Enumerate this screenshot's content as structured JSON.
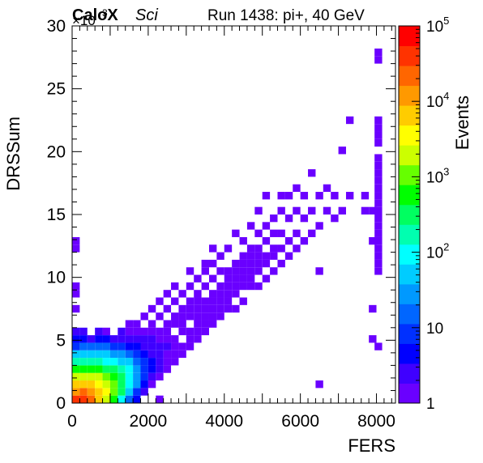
{
  "chart_data": {
    "type": "heatmap",
    "title_left": "CaloX",
    "title_left_sub": "Sci",
    "title_right": "Run 1438: pi+, 40 GeV",
    "xlabel": "FERS",
    "ylabel": "DRSSum",
    "y_multiplier_label": "×10",
    "y_multiplier_exponent": "3",
    "zlabel": "Events",
    "xlim": [
      0,
      8500
    ],
    "ylim": [
      0,
      30
    ],
    "zlim": [
      1,
      100000
    ],
    "z_scale": "log",
    "x_ticks": [
      0,
      2000,
      4000,
      6000,
      8000
    ],
    "x_tick_labels": [
      "0",
      "2000",
      "4000",
      "6000",
      "8000"
    ],
    "y_ticks": [
      0,
      5,
      10,
      15,
      20,
      25,
      30
    ],
    "y_tick_labels": [
      "0",
      "5",
      "10",
      "15",
      "20",
      "25",
      "30"
    ],
    "z_tick_labels": [
      {
        "value": 1,
        "base": "1",
        "exp": ""
      },
      {
        "value": 10,
        "base": "10",
        "exp": ""
      },
      {
        "value": 100,
        "base": "10",
        "exp": "2"
      },
      {
        "value": 1000,
        "base": "10",
        "exp": "3"
      },
      {
        "value": 10000,
        "base": "10",
        "exp": "4"
      },
      {
        "value": 100000,
        "base": "10",
        "exp": "5"
      }
    ],
    "grid": false,
    "colormap": [
      "#6a00ff",
      "#3f00ff",
      "#0000ff",
      "#0030ff",
      "#0066ff",
      "#0099ff",
      "#00ccff",
      "#00ffff",
      "#00ffb0",
      "#00ff60",
      "#00ff00",
      "#66ff00",
      "#ccff00",
      "#ffff00",
      "#ffcc00",
      "#ff9900",
      "#ff6600",
      "#ff3300",
      "#ff0000"
    ],
    "note": "Bins give [x, y, counts] in data units (FERS, DRSSum ×10^3, events).",
    "bins": [
      [
        100,
        0.3,
        30000
      ],
      [
        100,
        0.9,
        12000
      ],
      [
        100,
        1.5,
        5000
      ],
      [
        100,
        2.1,
        1500
      ],
      [
        100,
        2.7,
        500
      ],
      [
        100,
        3.3,
        150
      ],
      [
        100,
        3.9,
        40
      ],
      [
        100,
        4.5,
        10
      ],
      [
        100,
        5.1,
        4
      ],
      [
        100,
        5.7,
        2
      ],
      [
        100,
        7.5,
        1
      ],
      [
        100,
        8.7,
        1
      ],
      [
        100,
        9.3,
        1
      ],
      [
        100,
        12.3,
        1
      ],
      [
        100,
        12.9,
        1
      ],
      [
        300,
        0.3,
        40000
      ],
      [
        300,
        0.9,
        20000
      ],
      [
        300,
        1.5,
        8000
      ],
      [
        300,
        2.1,
        2500
      ],
      [
        300,
        2.7,
        700
      ],
      [
        300,
        3.3,
        200
      ],
      [
        300,
        3.9,
        50
      ],
      [
        300,
        4.5,
        15
      ],
      [
        300,
        5.1,
        5
      ],
      [
        300,
        5.7,
        2
      ],
      [
        500,
        0.3,
        20000
      ],
      [
        500,
        0.9,
        15000
      ],
      [
        500,
        1.5,
        6000
      ],
      [
        500,
        2.1,
        2000
      ],
      [
        500,
        2.7,
        700
      ],
      [
        500,
        3.3,
        200
      ],
      [
        500,
        3.9,
        60
      ],
      [
        500,
        4.5,
        15
      ],
      [
        500,
        5.1,
        3
      ],
      [
        700,
        0.3,
        8000
      ],
      [
        700,
        0.9,
        8000
      ],
      [
        700,
        1.5,
        4000
      ],
      [
        700,
        2.1,
        1500
      ],
      [
        700,
        2.7,
        500
      ],
      [
        700,
        3.3,
        150
      ],
      [
        700,
        3.9,
        50
      ],
      [
        700,
        4.5,
        15
      ],
      [
        700,
        5.1,
        5
      ],
      [
        700,
        5.7,
        2
      ],
      [
        900,
        0.3,
        2500
      ],
      [
        900,
        0.9,
        3500
      ],
      [
        900,
        1.5,
        2500
      ],
      [
        900,
        2.1,
        1000
      ],
      [
        900,
        2.7,
        400
      ],
      [
        900,
        3.3,
        120
      ],
      [
        900,
        3.9,
        40
      ],
      [
        900,
        4.5,
        12
      ],
      [
        900,
        5.1,
        4
      ],
      [
        900,
        5.7,
        1
      ],
      [
        1100,
        0.3,
        600
      ],
      [
        1100,
        0.9,
        1200
      ],
      [
        1100,
        1.5,
        1200
      ],
      [
        1100,
        2.1,
        600
      ],
      [
        1100,
        2.7,
        250
      ],
      [
        1100,
        3.3,
        90
      ],
      [
        1100,
        3.9,
        30
      ],
      [
        1100,
        4.5,
        10
      ],
      [
        1100,
        5.1,
        3
      ],
      [
        1300,
        0.3,
        120
      ],
      [
        1300,
        0.9,
        300
      ],
      [
        1300,
        1.5,
        400
      ],
      [
        1300,
        2.1,
        300
      ],
      [
        1300,
        2.7,
        150
      ],
      [
        1300,
        3.3,
        60
      ],
      [
        1300,
        3.9,
        25
      ],
      [
        1300,
        4.5,
        8
      ],
      [
        1300,
        5.1,
        3
      ],
      [
        1300,
        5.7,
        2
      ],
      [
        1500,
        0.3,
        20
      ],
      [
        1500,
        0.9,
        60
      ],
      [
        1500,
        1.5,
        100
      ],
      [
        1500,
        2.1,
        100
      ],
      [
        1500,
        2.7,
        70
      ],
      [
        1500,
        3.3,
        40
      ],
      [
        1500,
        3.9,
        15
      ],
      [
        1500,
        4.5,
        6
      ],
      [
        1500,
        5.1,
        2
      ],
      [
        1500,
        5.7,
        1
      ],
      [
        1500,
        6.3,
        1
      ],
      [
        1700,
        0.3,
        4
      ],
      [
        1700,
        0.9,
        10
      ],
      [
        1700,
        1.5,
        25
      ],
      [
        1700,
        2.1,
        30
      ],
      [
        1700,
        2.7,
        25
      ],
      [
        1700,
        3.3,
        15
      ],
      [
        1700,
        3.9,
        8
      ],
      [
        1700,
        4.5,
        4
      ],
      [
        1700,
        5.1,
        2
      ],
      [
        1700,
        5.7,
        1
      ],
      [
        1700,
        6.3,
        1
      ],
      [
        1900,
        0.9,
        2
      ],
      [
        1900,
        1.5,
        5
      ],
      [
        1900,
        2.1,
        8
      ],
      [
        1900,
        2.7,
        10
      ],
      [
        1900,
        3.3,
        8
      ],
      [
        1900,
        3.9,
        5
      ],
      [
        1900,
        4.5,
        3
      ],
      [
        1900,
        5.1,
        2
      ],
      [
        1900,
        5.7,
        1
      ],
      [
        1900,
        6.9,
        1
      ],
      [
        2100,
        1.5,
        1
      ],
      [
        2100,
        2.1,
        2
      ],
      [
        2100,
        2.7,
        4
      ],
      [
        2100,
        3.3,
        4
      ],
      [
        2100,
        3.9,
        3
      ],
      [
        2100,
        4.5,
        2
      ],
      [
        2100,
        5.1,
        2
      ],
      [
        2100,
        5.7,
        1
      ],
      [
        2100,
        6.3,
        1
      ],
      [
        2100,
        7.5,
        1
      ],
      [
        2300,
        0.3,
        1
      ],
      [
        2300,
        2.1,
        1
      ],
      [
        2300,
        2.7,
        2
      ],
      [
        2300,
        3.3,
        2
      ],
      [
        2300,
        3.9,
        2
      ],
      [
        2300,
        4.5,
        2
      ],
      [
        2300,
        5.1,
        1
      ],
      [
        2300,
        5.7,
        1
      ],
      [
        2300,
        6.9,
        1
      ],
      [
        2300,
        8.1,
        1
      ],
      [
        2500,
        2.7,
        1
      ],
      [
        2500,
        3.3,
        1
      ],
      [
        2500,
        3.9,
        1
      ],
      [
        2500,
        4.5,
        2
      ],
      [
        2500,
        5.1,
        1
      ],
      [
        2500,
        5.7,
        1
      ],
      [
        2500,
        6.3,
        1
      ],
      [
        2500,
        7.5,
        1
      ],
      [
        2500,
        8.7,
        1
      ],
      [
        2700,
        3.3,
        1
      ],
      [
        2700,
        3.9,
        1
      ],
      [
        2700,
        4.5,
        1
      ],
      [
        2700,
        5.1,
        1
      ],
      [
        2700,
        6.3,
        1
      ],
      [
        2700,
        6.9,
        1
      ],
      [
        2700,
        8.1,
        1
      ],
      [
        2700,
        9.3,
        1
      ],
      [
        2900,
        3.9,
        1
      ],
      [
        2900,
        4.5,
        1
      ],
      [
        2900,
        5.7,
        1
      ],
      [
        2900,
        6.3,
        1
      ],
      [
        2900,
        6.9,
        1
      ],
      [
        2900,
        7.5,
        1
      ],
      [
        2900,
        8.7,
        1
      ],
      [
        3100,
        4.5,
        1
      ],
      [
        3100,
        5.1,
        1
      ],
      [
        3100,
        5.7,
        1
      ],
      [
        3100,
        6.9,
        1
      ],
      [
        3100,
        7.5,
        1
      ],
      [
        3100,
        8.1,
        1
      ],
      [
        3100,
        9.3,
        1
      ],
      [
        3100,
        10.5,
        1
      ],
      [
        3300,
        5.1,
        1
      ],
      [
        3300,
        5.7,
        1
      ],
      [
        3300,
        6.3,
        1
      ],
      [
        3300,
        6.9,
        1
      ],
      [
        3300,
        7.5,
        1
      ],
      [
        3300,
        8.1,
        1
      ],
      [
        3300,
        8.7,
        1
      ],
      [
        3300,
        9.9,
        1
      ],
      [
        3500,
        5.7,
        1
      ],
      [
        3500,
        6.3,
        1
      ],
      [
        3500,
        6.9,
        1
      ],
      [
        3500,
        7.5,
        1
      ],
      [
        3500,
        8.1,
        1
      ],
      [
        3500,
        9.3,
        1
      ],
      [
        3500,
        10.5,
        1
      ],
      [
        3500,
        11.1,
        1
      ],
      [
        3700,
        6.3,
        1
      ],
      [
        3700,
        6.9,
        1
      ],
      [
        3700,
        7.5,
        1
      ],
      [
        3700,
        8.1,
        1
      ],
      [
        3700,
        8.7,
        1
      ],
      [
        3700,
        9.9,
        1
      ],
      [
        3700,
        11.1,
        1
      ],
      [
        3700,
        12.3,
        1
      ],
      [
        3900,
        6.9,
        1
      ],
      [
        3900,
        7.5,
        1
      ],
      [
        3900,
        8.1,
        1
      ],
      [
        3900,
        8.7,
        1
      ],
      [
        3900,
        9.3,
        1
      ],
      [
        3900,
        10.5,
        1
      ],
      [
        3900,
        11.7,
        1
      ],
      [
        4100,
        7.5,
        1
      ],
      [
        4100,
        8.1,
        1
      ],
      [
        4100,
        8.7,
        1
      ],
      [
        4100,
        9.3,
        1
      ],
      [
        4100,
        9.9,
        1
      ],
      [
        4100,
        10.5,
        1
      ],
      [
        4100,
        12.3,
        1
      ],
      [
        4300,
        7.5,
        1
      ],
      [
        4300,
        8.7,
        1
      ],
      [
        4300,
        9.3,
        1
      ],
      [
        4300,
        9.9,
        1
      ],
      [
        4300,
        10.5,
        1
      ],
      [
        4300,
        11.1,
        1
      ],
      [
        4300,
        13.5,
        1
      ],
      [
        4500,
        8.1,
        1
      ],
      [
        4500,
        9.3,
        1
      ],
      [
        4500,
        9.9,
        1
      ],
      [
        4500,
        10.5,
        1
      ],
      [
        4500,
        11.1,
        1
      ],
      [
        4500,
        11.7,
        1
      ],
      [
        4500,
        12.9,
        1
      ],
      [
        4700,
        9.3,
        1
      ],
      [
        4700,
        9.9,
        1
      ],
      [
        4700,
        10.5,
        1
      ],
      [
        4700,
        11.1,
        1
      ],
      [
        4700,
        11.7,
        1
      ],
      [
        4700,
        12.3,
        1
      ],
      [
        4700,
        14.1,
        1
      ],
      [
        4900,
        9.3,
        1
      ],
      [
        4900,
        10.5,
        1
      ],
      [
        4900,
        11.1,
        1
      ],
      [
        4900,
        11.7,
        1
      ],
      [
        4900,
        12.3,
        1
      ],
      [
        4900,
        13.5,
        1
      ],
      [
        4900,
        15.3,
        1
      ],
      [
        5100,
        9.9,
        1
      ],
      [
        5100,
        11.1,
        1
      ],
      [
        5100,
        11.7,
        1
      ],
      [
        5100,
        12.9,
        1
      ],
      [
        5100,
        14.1,
        1
      ],
      [
        5100,
        16.5,
        1
      ],
      [
        5300,
        10.5,
        1
      ],
      [
        5300,
        11.7,
        1
      ],
      [
        5300,
        12.3,
        1
      ],
      [
        5300,
        13.5,
        1
      ],
      [
        5300,
        14.7,
        1
      ],
      [
        5500,
        11.1,
        1
      ],
      [
        5500,
        12.3,
        1
      ],
      [
        5500,
        13.5,
        1
      ],
      [
        5500,
        15.3,
        1
      ],
      [
        5500,
        16.5,
        1
      ],
      [
        5700,
        11.7,
        1
      ],
      [
        5700,
        12.9,
        1
      ],
      [
        5700,
        14.7,
        1
      ],
      [
        5700,
        16.5,
        1
      ],
      [
        5900,
        12.3,
        1
      ],
      [
        5900,
        13.5,
        1
      ],
      [
        5900,
        15.3,
        1
      ],
      [
        5900,
        17.1,
        1
      ],
      [
        6100,
        12.9,
        1
      ],
      [
        6100,
        14.7,
        1
      ],
      [
        6100,
        16.5,
        1
      ],
      [
        6300,
        13.5,
        1
      ],
      [
        6300,
        15.3,
        1
      ],
      [
        6300,
        18.3,
        1
      ],
      [
        6500,
        10.5,
        1
      ],
      [
        6500,
        14.1,
        1
      ],
      [
        6500,
        16.5,
        1
      ],
      [
        6500,
        1.5,
        1
      ],
      [
        6700,
        15.3,
        1
      ],
      [
        6700,
        17.1,
        1
      ],
      [
        6900,
        14.7,
        1
      ],
      [
        6900,
        16.5,
        1
      ],
      [
        7100,
        15.3,
        1
      ],
      [
        7100,
        20.1,
        1
      ],
      [
        7300,
        16.5,
        1
      ],
      [
        7300,
        22.5,
        1
      ],
      [
        7700,
        15.3,
        1
      ],
      [
        7700,
        16.5,
        1
      ],
      [
        7900,
        5.1,
        1
      ],
      [
        7900,
        7.5,
        1
      ],
      [
        7900,
        12.9,
        1
      ],
      [
        7900,
        15.3,
        1
      ],
      [
        8050,
        10.5,
        1
      ],
      [
        8050,
        11.1,
        1
      ],
      [
        8050,
        11.7,
        1
      ],
      [
        8050,
        12.3,
        1
      ],
      [
        8050,
        12.9,
        1
      ],
      [
        8050,
        13.5,
        1
      ],
      [
        8050,
        14.1,
        1
      ],
      [
        8050,
        14.7,
        1
      ],
      [
        8050,
        15.3,
        1
      ],
      [
        8050,
        15.9,
        1
      ],
      [
        8050,
        16.5,
        1
      ],
      [
        8050,
        17.1,
        1
      ],
      [
        8050,
        17.7,
        1
      ],
      [
        8050,
        18.3,
        1
      ],
      [
        8050,
        18.9,
        1
      ],
      [
        8050,
        19.5,
        1
      ],
      [
        8050,
        20.7,
        1
      ],
      [
        8050,
        21.3,
        1
      ],
      [
        8050,
        21.9,
        1
      ],
      [
        8050,
        22.5,
        1
      ],
      [
        8050,
        27.3,
        1
      ],
      [
        8050,
        27.9,
        1
      ],
      [
        8050,
        4.5,
        1
      ]
    ]
  }
}
